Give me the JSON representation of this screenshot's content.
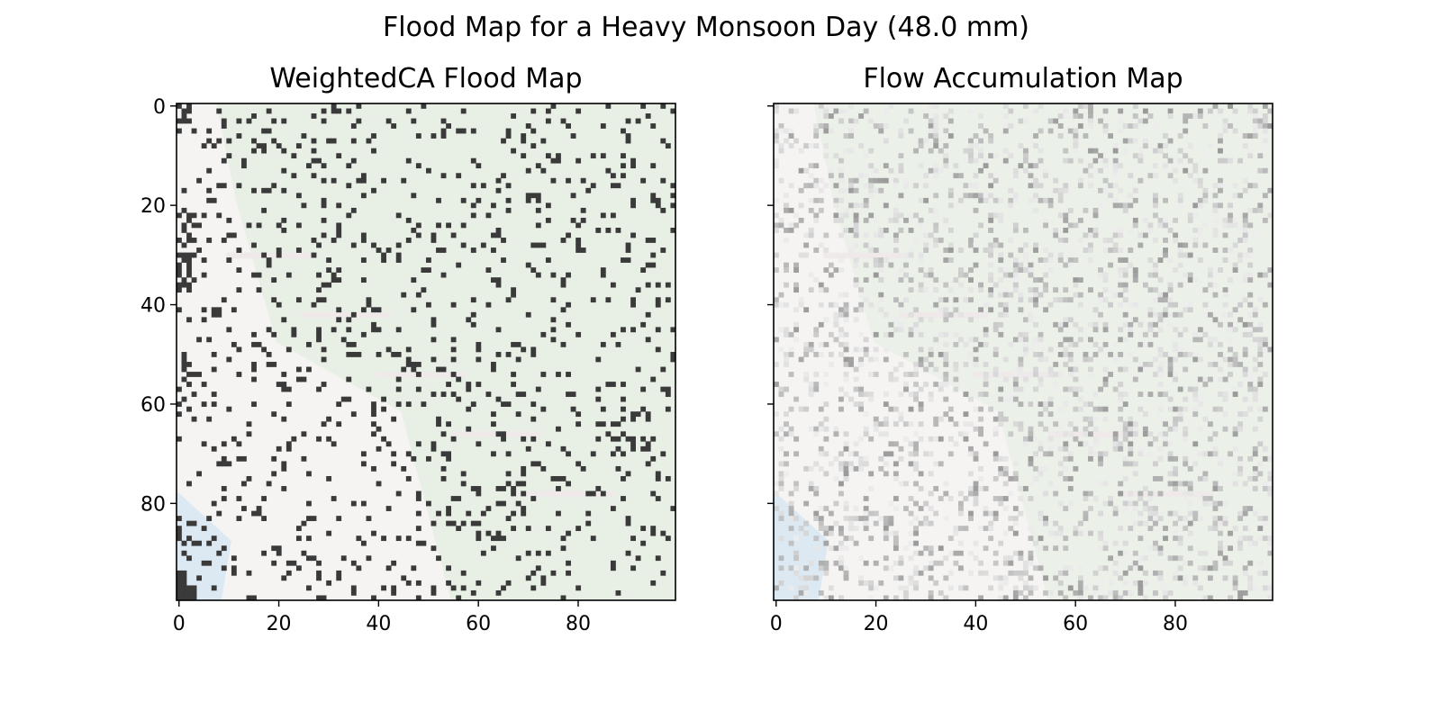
{
  "chart_data": {
    "title": "Flood Map for a Heavy Monsoon Day (48.0 mm)",
    "panels": [
      {
        "type": "heatmap",
        "title": "WeightedCA Flood Map",
        "grid_size": 100,
        "xlim": [
          0,
          100
        ],
        "ylim": [
          100,
          0
        ],
        "xticks": [
          0,
          20,
          40,
          60,
          80
        ],
        "yticks": [
          0,
          20,
          40,
          60,
          80
        ],
        "show_ytick_labels": true,
        "flooded_cell_color": "#3a3a3a",
        "flooded_cell_fraction": 0.1,
        "flooded_corner_region": "bottom-left"
      },
      {
        "type": "heatmap",
        "title": "Flow Accumulation Map",
        "grid_size": 100,
        "xlim": [
          0,
          100
        ],
        "ylim": [
          100,
          0
        ],
        "xticks": [
          0,
          20,
          40,
          60,
          80
        ],
        "yticks": [
          0,
          20,
          40,
          60,
          80
        ],
        "show_ytick_labels": false,
        "cell_colormap": "greys",
        "max_cell_darkness": 0.55
      }
    ],
    "basemap_colors": {
      "land": "#f6f4f2",
      "vegetation": "#e7efe5",
      "water": "#dde9f2",
      "roads": "#efe9ea"
    }
  }
}
